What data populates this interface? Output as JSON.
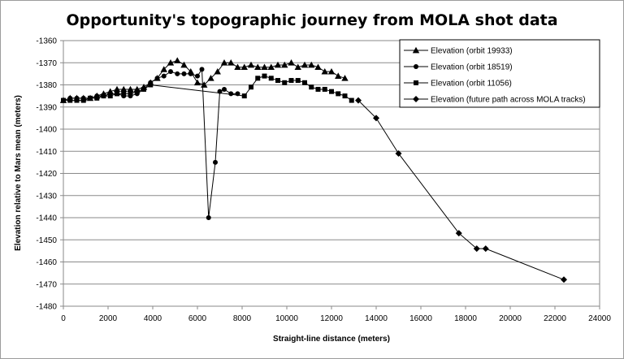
{
  "chart_data": {
    "type": "line",
    "title": "Opportunity's topographic journey from MOLA shot data",
    "xlabel": "Straight-line distance  (meters)",
    "ylabel": "Elevation relative to Mars mean (meters)",
    "xlim": [
      0,
      24000
    ],
    "ylim": [
      -1480,
      -1360
    ],
    "x_ticks": [
      "0",
      "2000",
      "4000",
      "6000",
      "8000",
      "10000",
      "12000",
      "14000",
      "16000",
      "18000",
      "20000",
      "22000",
      "24000"
    ],
    "y_ticks": [
      "-1360",
      "-1370",
      "-1380",
      "-1390",
      "-1400",
      "-1410",
      "-1420",
      "-1430",
      "-1440",
      "-1450",
      "-1460",
      "-1470",
      "-1480"
    ],
    "grid": "horizontal",
    "legend_position": "top-right",
    "series": [
      {
        "name": "Elevation (orbit 19933)",
        "marker": "triangle",
        "x": [
          0,
          300,
          600,
          900,
          1200,
          1500,
          1800,
          2100,
          2400,
          2700,
          3000,
          3300,
          3600,
          3900,
          4200,
          4500,
          4800,
          5100,
          5400,
          5700,
          6000,
          6300,
          6600,
          6900,
          7200,
          7500,
          7800,
          8100,
          8400,
          8700,
          9000,
          9300,
          9600,
          9900,
          10200,
          10500,
          10800,
          11100,
          11400,
          11700,
          12000,
          12300,
          12600
        ],
        "y": [
          -1387,
          -1386,
          -1386,
          -1386,
          -1386,
          -1385,
          -1384,
          -1383,
          -1382,
          -1382,
          -1382,
          -1382,
          -1381,
          -1379,
          -1377,
          -1373,
          -1370,
          -1369,
          -1371,
          -1374,
          -1379,
          -1380,
          -1377,
          -1374,
          -1370,
          -1370,
          -1372,
          -1372,
          -1371,
          -1372,
          -1372,
          -1372,
          -1371,
          -1371,
          -1370,
          -1372,
          -1371,
          -1371,
          -1372,
          -1374,
          -1374,
          -1376,
          -1377
        ]
      },
      {
        "name": "Elevation (orbit 18519)",
        "marker": "circle",
        "x": [
          0,
          300,
          600,
          900,
          1200,
          1500,
          1800,
          2100,
          2400,
          2700,
          3000,
          3300,
          3600,
          3900,
          4200,
          4500,
          4800,
          5100,
          5400,
          5700,
          6000,
          6200,
          6500,
          6800,
          7000,
          7200,
          7500,
          7800
        ],
        "y": [
          -1387,
          -1386,
          -1386,
          -1386,
          -1386,
          -1385,
          -1385,
          -1384,
          -1384,
          -1385,
          -1385,
          -1384,
          -1382,
          -1379,
          -1377,
          -1376,
          -1374,
          -1375,
          -1375,
          -1375,
          -1376,
          -1373,
          -1440,
          -1415,
          -1383,
          -1382,
          -1384,
          -1384
        ]
      },
      {
        "name": "Elevation (orbit 11056)",
        "marker": "square",
        "x": [
          0,
          300,
          600,
          900,
          1200,
          1500,
          1800,
          2100,
          2400,
          2700,
          3000,
          3300,
          3600,
          3900,
          8100,
          8400,
          8700,
          9000,
          9300,
          9600,
          9900,
          10200,
          10500,
          10800,
          11100,
          11400,
          11700,
          12000,
          12300,
          12600,
          12900
        ],
        "y": [
          -1387,
          -1387,
          -1387,
          -1387,
          -1386,
          -1386,
          -1385,
          -1385,
          -1384,
          -1384,
          -1384,
          -1383,
          -1382,
          -1380,
          -1385,
          -1381,
          -1377,
          -1376,
          -1377,
          -1378,
          -1379,
          -1378,
          -1378,
          -1379,
          -1381,
          -1382,
          -1382,
          -1383,
          -1384,
          -1385,
          -1387
        ]
      },
      {
        "name": "Elevation (future path across MOLA tracks)",
        "marker": "diamond",
        "x": [
          13200,
          14000,
          15000,
          17700,
          18500,
          18900,
          22400
        ],
        "y": [
          -1387,
          -1395,
          -1411,
          -1447,
          -1454,
          -1454,
          -1468
        ]
      }
    ]
  }
}
